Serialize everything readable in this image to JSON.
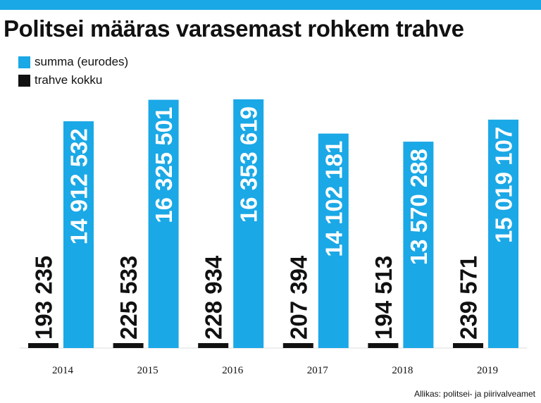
{
  "title": "Politsei määras varasemast rohkem trahve",
  "source": "Allikas: politsei- ja piirivalveamet",
  "colors": {
    "accent": "#1ba8e6",
    "dark": "#111111"
  },
  "legend": [
    {
      "label": "summa (eurodes)",
      "color": "#1ba8e6"
    },
    {
      "label": "trahve kokku",
      "color": "#111111"
    }
  ],
  "chart_data": {
    "type": "bar",
    "categories": [
      "2014",
      "2015",
      "2016",
      "2017",
      "2018",
      "2019"
    ],
    "series": [
      {
        "name": "trahve kokku",
        "color": "#111111",
        "values": [
          193235,
          225533,
          228934,
          207394,
          194513,
          239571
        ],
        "labels": [
          "193 235",
          "225 533",
          "228 934",
          "207 394",
          "194 513",
          "239 571"
        ]
      },
      {
        "name": "summa (eurodes)",
        "color": "#1ba8e6",
        "values": [
          14912532,
          16325501,
          16353619,
          14102181,
          13570288,
          15019107
        ],
        "labels": [
          "14 912 532",
          "16 325 501",
          "16 353 619",
          "14 102 181",
          "13 570 288",
          "15 019 107"
        ]
      }
    ],
    "xlabel": "",
    "ylabel": "",
    "ylim": [
      0,
      16353619
    ],
    "grid": false,
    "legend_position": "top-left"
  }
}
